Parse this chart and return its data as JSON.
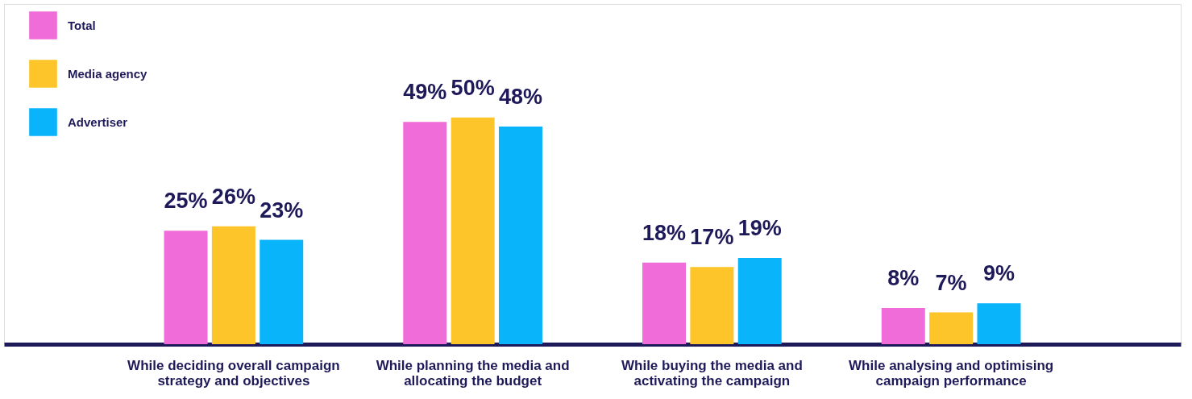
{
  "chart_data": {
    "type": "bar",
    "categories": [
      "While deciding overall campaign strategy and objectives",
      "While planning the media and allocating the budget",
      "While buying the media and activating the campaign",
      "While analysing and optimising campaign performance"
    ],
    "series": [
      {
        "name": "Total",
        "color": "#f06cd8",
        "values": [
          25,
          49,
          18,
          8
        ],
        "value_labels": [
          "25%",
          "49%",
          "18%",
          "8%"
        ]
      },
      {
        "name": "Media agency",
        "color": "#fdc52a",
        "values": [
          26,
          50,
          17,
          7
        ],
        "value_labels": [
          "26%",
          "50%",
          "17%",
          "7%"
        ]
      },
      {
        "name": "Advertiser",
        "color": "#0ab4fb",
        "values": [
          23,
          48,
          19,
          9
        ],
        "value_labels": [
          "23%",
          "48%",
          "19%",
          "9%"
        ]
      }
    ],
    "legend": "top left",
    "grid": false,
    "tick_labels": "x"
  }
}
